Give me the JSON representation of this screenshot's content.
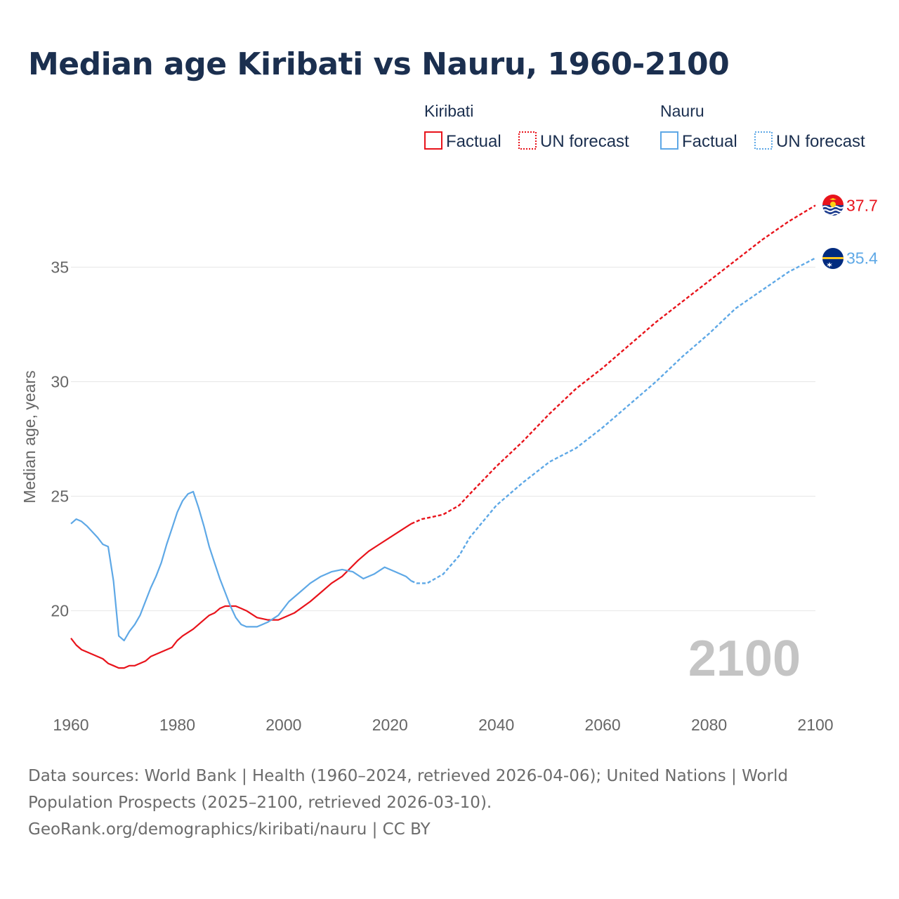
{
  "chart_data": {
    "type": "line",
    "title": "Median age Kiribati vs Nauru, 1960-2100",
    "ylabel": "Median age, years",
    "xlabel": "",
    "xlim": [
      1960,
      2100
    ],
    "ylim": [
      16,
      39
    ],
    "x_ticks": [
      1960,
      1980,
      2000,
      2020,
      2040,
      2060,
      2080,
      2100
    ],
    "y_ticks": [
      20,
      25,
      30,
      35
    ],
    "year_watermark": "2100",
    "legend": {
      "groups": [
        {
          "name": "Kiribati",
          "entries": [
            "Factual",
            "UN forecast"
          ],
          "color": "#e8131b"
        },
        {
          "name": "Nauru",
          "entries": [
            "Factual",
            "UN forecast"
          ],
          "color": "#5ea8e6"
        }
      ]
    },
    "series": [
      {
        "name": "Kiribati",
        "kind": "Factual",
        "color": "#e8131b",
        "x": [
          1960,
          1961,
          1962,
          1964,
          1966,
          1967,
          1968,
          1969,
          1970,
          1971,
          1972,
          1974,
          1975,
          1978,
          1979,
          1980,
          1981,
          1983,
          1985,
          1986,
          1987,
          1988,
          1989,
          1990,
          1991,
          1992,
          1993,
          1995,
          1997,
          1999,
          2002,
          2005,
          2007,
          2009,
          2011,
          2014,
          2016,
          2018,
          2020,
          2022,
          2024
        ],
        "values": [
          18.8,
          18.5,
          18.3,
          18.1,
          17.9,
          17.7,
          17.6,
          17.5,
          17.5,
          17.6,
          17.6,
          17.8,
          18.0,
          18.3,
          18.4,
          18.7,
          18.9,
          19.2,
          19.6,
          19.8,
          19.9,
          20.1,
          20.2,
          20.2,
          20.2,
          20.1,
          20.0,
          19.7,
          19.6,
          19.6,
          19.9,
          20.4,
          20.8,
          21.2,
          21.5,
          22.2,
          22.6,
          22.9,
          23.2,
          23.5,
          23.8
        ]
      },
      {
        "name": "Kiribati",
        "kind": "UN forecast",
        "color": "#e8131b",
        "x": [
          2024,
          2026,
          2028,
          2030,
          2033,
          2035,
          2040,
          2045,
          2050,
          2055,
          2060,
          2065,
          2070,
          2075,
          2080,
          2085,
          2090,
          2095,
          2100
        ],
        "values": [
          23.8,
          24.0,
          24.1,
          24.2,
          24.6,
          25.1,
          26.3,
          27.4,
          28.6,
          29.7,
          30.6,
          31.6,
          32.6,
          33.5,
          34.4,
          35.3,
          36.2,
          37.0,
          37.7
        ]
      },
      {
        "name": "Nauru",
        "kind": "Factual",
        "color": "#5ea8e6",
        "x": [
          1960,
          1961,
          1962,
          1963,
          1965,
          1966,
          1967,
          1968,
          1969,
          1970,
          1971,
          1972,
          1973,
          1974,
          1975,
          1976,
          1977,
          1978,
          1979,
          1980,
          1981,
          1982,
          1983,
          1984,
          1985,
          1986,
          1987,
          1988,
          1989,
          1990,
          1991,
          1992,
          1993,
          1995,
          1997,
          1999,
          2001,
          2003,
          2005,
          2007,
          2009,
          2011,
          2013,
          2015,
          2017,
          2019,
          2021,
          2023,
          2024
        ],
        "values": [
          23.8,
          24.0,
          23.9,
          23.7,
          23.2,
          22.9,
          22.8,
          21.3,
          18.9,
          18.7,
          19.1,
          19.4,
          19.8,
          20.4,
          21.0,
          21.5,
          22.1,
          22.9,
          23.6,
          24.3,
          24.8,
          25.1,
          25.2,
          24.5,
          23.7,
          22.8,
          22.1,
          21.4,
          20.8,
          20.2,
          19.7,
          19.4,
          19.3,
          19.3,
          19.5,
          19.8,
          20.4,
          20.8,
          21.2,
          21.5,
          21.7,
          21.8,
          21.7,
          21.4,
          21.6,
          21.9,
          21.7,
          21.5,
          21.3
        ]
      },
      {
        "name": "Nauru",
        "kind": "UN forecast",
        "color": "#5ea8e6",
        "x": [
          2024,
          2025,
          2027,
          2030,
          2033,
          2035,
          2040,
          2045,
          2050,
          2055,
          2060,
          2065,
          2070,
          2075,
          2080,
          2085,
          2090,
          2095,
          2100
        ],
        "values": [
          21.3,
          21.2,
          21.2,
          21.6,
          22.4,
          23.2,
          24.6,
          25.6,
          26.5,
          27.1,
          28.0,
          29.0,
          30.0,
          31.1,
          32.1,
          33.2,
          34.0,
          34.8,
          35.4
        ]
      }
    ],
    "end_labels": [
      {
        "series": "Kiribati",
        "year": 2100,
        "value": 37.7,
        "label": "37.7",
        "color": "#e8131b"
      },
      {
        "series": "Nauru",
        "year": 2100,
        "value": 35.4,
        "label": "35.4",
        "color": "#5ea8e6"
      }
    ]
  },
  "source": {
    "line1": "Data sources: World Bank | Health (1960–2024, retrieved 2026-04-06); United Nations | World",
    "line2": "Population Prospects (2025–2100, retrieved 2026-03-10).",
    "line3": "GeoRank.org/demographics/kiribati/nauru | CC BY"
  }
}
